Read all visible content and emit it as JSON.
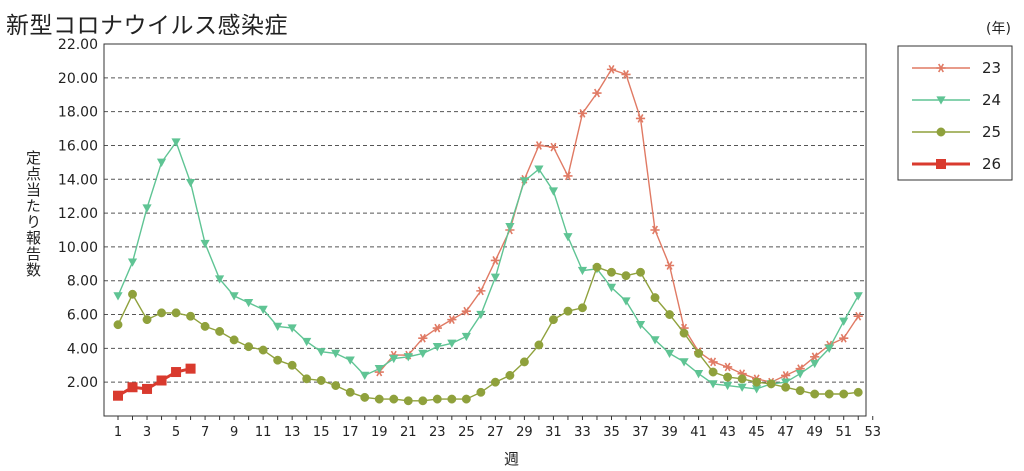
{
  "title": "新型コロナウイルス感染症",
  "chart_data": {
    "type": "line",
    "title": "新型コロナウイルス感染症",
    "xlabel": "週",
    "ylabel": "定点当たり報告数",
    "legend_title": "(年)",
    "legend_position": "right",
    "grid": true,
    "xlim": [
      1,
      53
    ],
    "ylim": [
      0,
      22
    ],
    "xticks": [
      1,
      3,
      5,
      7,
      9,
      11,
      13,
      15,
      17,
      19,
      21,
      23,
      25,
      27,
      29,
      31,
      33,
      35,
      37,
      39,
      41,
      43,
      45,
      47,
      49,
      51,
      53
    ],
    "yticks": [
      "2.00",
      "4.00",
      "6.00",
      "8.00",
      "10.00",
      "12.00",
      "14.00",
      "16.00",
      "18.00",
      "20.00",
      "22.00"
    ],
    "series": [
      {
        "name": "23",
        "color": "#e07a64",
        "marker": "asterisk",
        "x": [
          19,
          20,
          21,
          22,
          23,
          24,
          25,
          26,
          27,
          28,
          29,
          30,
          31,
          32,
          33,
          34,
          35,
          36,
          37,
          38,
          39,
          40,
          41,
          42,
          43,
          44,
          45,
          46,
          47,
          48,
          49,
          50,
          51,
          52
        ],
        "values": [
          2.6,
          3.6,
          3.6,
          4.6,
          5.2,
          5.7,
          6.2,
          7.4,
          9.2,
          11.0,
          14.0,
          16.0,
          15.9,
          14.2,
          17.9,
          19.1,
          20.5,
          20.2,
          17.6,
          11.0,
          8.9,
          5.2,
          3.8,
          3.2,
          2.9,
          2.5,
          2.2,
          2.0,
          2.4,
          2.8,
          3.5,
          4.2,
          4.6,
          5.9
        ]
      },
      {
        "name": "24",
        "color": "#5fc494",
        "marker": "triangle-down",
        "x": [
          1,
          2,
          3,
          4,
          5,
          6,
          7,
          8,
          9,
          10,
          11,
          12,
          13,
          14,
          15,
          16,
          17,
          18,
          19,
          20,
          21,
          22,
          23,
          24,
          25,
          26,
          27,
          28,
          29,
          30,
          31,
          32,
          33,
          34,
          35,
          36,
          37,
          38,
          39,
          40,
          41,
          42,
          43,
          44,
          45,
          46,
          47,
          48,
          49,
          50,
          51,
          52
        ],
        "values": [
          7.1,
          9.1,
          12.3,
          15.0,
          16.2,
          13.8,
          10.2,
          8.1,
          7.1,
          6.7,
          6.3,
          5.3,
          5.2,
          4.4,
          3.8,
          3.7,
          3.3,
          2.4,
          2.8,
          3.4,
          3.5,
          3.7,
          4.1,
          4.3,
          4.7,
          6.0,
          8.2,
          11.2,
          13.9,
          14.6,
          13.3,
          10.6,
          8.6,
          8.7,
          7.6,
          6.8,
          5.4,
          4.5,
          3.7,
          3.2,
          2.5,
          1.9,
          1.8,
          1.7,
          1.6,
          1.9,
          2.0,
          2.5,
          3.1,
          4.0,
          5.6,
          7.1
        ]
      },
      {
        "name": "25",
        "color": "#8fa13c",
        "marker": "circle",
        "x": [
          1,
          2,
          3,
          4,
          5,
          6,
          7,
          8,
          9,
          10,
          11,
          12,
          13,
          14,
          15,
          16,
          17,
          18,
          19,
          20,
          21,
          22,
          23,
          24,
          25,
          26,
          27,
          28,
          29,
          30,
          31,
          32,
          33,
          34,
          35,
          36,
          37,
          38,
          39,
          40,
          41,
          42,
          43,
          44,
          45,
          46,
          47,
          48,
          49,
          50,
          51,
          52
        ],
        "values": [
          5.4,
          7.2,
          5.7,
          6.1,
          6.1,
          5.9,
          5.3,
          5.0,
          4.5,
          4.1,
          3.9,
          3.3,
          3.0,
          2.2,
          2.1,
          1.8,
          1.4,
          1.1,
          1.0,
          1.0,
          0.9,
          0.9,
          1.0,
          1.0,
          1.0,
          1.4,
          2.0,
          2.4,
          3.2,
          4.2,
          5.7,
          6.2,
          6.4,
          8.8,
          8.5,
          8.3,
          8.5,
          7.0,
          6.0,
          4.9,
          3.7,
          2.6,
          2.3,
          2.2,
          2.0,
          1.9,
          1.7,
          1.5,
          1.3,
          1.3,
          1.3,
          1.4
        ]
      },
      {
        "name": "26",
        "color": "#d93a2e",
        "marker": "square",
        "x": [
          1,
          2,
          3,
          4,
          5,
          6
        ],
        "values": [
          1.2,
          1.7,
          1.6,
          2.1,
          2.6,
          2.8
        ]
      }
    ]
  }
}
